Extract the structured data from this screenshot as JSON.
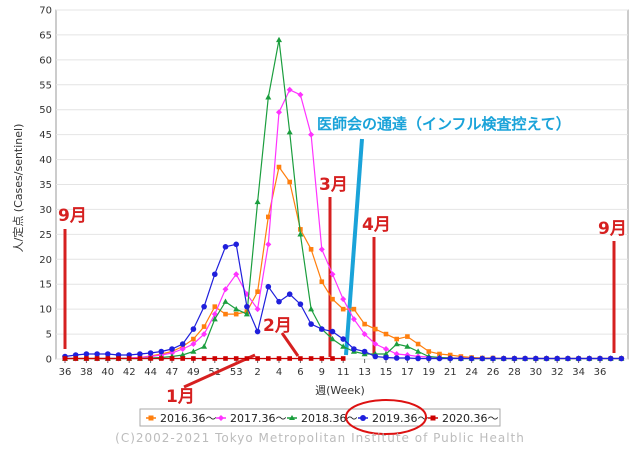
{
  "chart_data": {
    "type": "line",
    "ylabel": "人/定点 (Cases/sentinel)",
    "xlabel": "週(Week)",
    "ylim": [
      0,
      70
    ],
    "yticks": [
      0,
      5,
      10,
      15,
      20,
      25,
      30,
      35,
      40,
      45,
      50,
      55,
      60,
      65,
      70
    ],
    "xtick_labels": [
      "36",
      "38",
      "40",
      "42",
      "44",
      "47",
      "49",
      "51",
      "53",
      "2",
      "4",
      "6",
      "9",
      "11",
      "13",
      "15",
      "17",
      "19",
      "21",
      "24",
      "26",
      "28",
      "30",
      "32",
      "34",
      "36"
    ],
    "grid": "horizontal",
    "legend_position": "bottom",
    "series": [
      {
        "name": "2016.36～",
        "color": "#ff7f0e",
        "marker": "square",
        "values": [
          0.1,
          0.1,
          0.1,
          0.1,
          0.1,
          0.1,
          0.2,
          0.3,
          0.6,
          1.0,
          1.5,
          2.5,
          4.0,
          6.5,
          10.5,
          9.0,
          9.0,
          9.5,
          13.5,
          28.5,
          38.5,
          35.5,
          26.0,
          22.0,
          15.5,
          12.0,
          10.0,
          10.0,
          7.0,
          6.0,
          5.0,
          4.0,
          4.5,
          3.0,
          1.5,
          1.0,
          0.8,
          0.5,
          0.3,
          0.2,
          0.2,
          0.1,
          0.1,
          0.1,
          0.1,
          0.1,
          0.1,
          0.1,
          0.1,
          0.1,
          0.1,
          0.1,
          0.1
        ]
      },
      {
        "name": "2017.36～",
        "color": "#ff33ff",
        "marker": "diamond",
        "values": [
          0.1,
          0.1,
          0.1,
          0.1,
          0.1,
          0.1,
          0.2,
          0.3,
          0.5,
          0.8,
          1.2,
          2.0,
          3.0,
          5.0,
          9.0,
          14.0,
          17.0,
          13.0,
          10.0,
          23.0,
          49.5,
          54.0,
          53.0,
          45.0,
          22.0,
          17.0,
          12.0,
          8.0,
          5.0,
          3.0,
          2.0,
          1.0,
          0.8,
          0.5,
          0.4,
          0.3,
          0.2,
          0.2,
          0.1,
          0.1,
          0.1,
          0.1,
          0.1,
          0.1,
          0.1,
          0.1,
          0.1,
          0.1,
          0.1,
          0.1,
          0.1,
          0.1,
          0.1
        ]
      },
      {
        "name": "2018.36～",
        "color": "#1b9e3e",
        "marker": "triangle",
        "values": [
          0.1,
          0.1,
          0.1,
          0.1,
          0.1,
          0.1,
          0.1,
          0.1,
          0.2,
          0.3,
          0.5,
          0.8,
          1.5,
          2.5,
          8.0,
          11.5,
          10.0,
          9.0,
          31.5,
          52.5,
          64.0,
          45.5,
          25.0,
          10.0,
          6.0,
          4.0,
          2.5,
          1.5,
          1.0,
          1.0,
          1.0,
          3.0,
          2.5,
          1.5,
          0.5,
          0.3,
          0.2,
          0.1,
          0.1,
          0.1,
          0.1,
          0.1,
          0.1,
          0.1,
          0.1,
          0.1,
          0.1,
          0.1,
          0.1,
          0.1,
          0.1,
          0.1,
          0.1
        ]
      },
      {
        "name": "2019.36～",
        "color": "#1f1fdc",
        "marker": "circle",
        "values": [
          0.5,
          0.8,
          1.0,
          1.0,
          1.0,
          0.8,
          0.8,
          1.0,
          1.2,
          1.5,
          2.0,
          3.0,
          6.0,
          10.5,
          17.0,
          22.5,
          23.0,
          10.5,
          5.5,
          14.5,
          11.5,
          13.0,
          11.0,
          7.0,
          6.0,
          5.5,
          4.0,
          2.0,
          1.5,
          0.5,
          0.3,
          0.2,
          0.2,
          0.1,
          0.1,
          0.1,
          0.1,
          0.1,
          0.1,
          0.1,
          0.1,
          0.1,
          0.1,
          0.1,
          0.1,
          0.1,
          0.1,
          0.1,
          0.1,
          0.1,
          0.1,
          0.1,
          0.1
        ]
      },
      {
        "name": "2020.36～",
        "color": "#cc0000",
        "marker": "square",
        "values": [
          0.1,
          0.1,
          0.1,
          0.1,
          0.1,
          0.1,
          0.1,
          0.1,
          0.1,
          0.1,
          0.1,
          0.1,
          0.1,
          0.1,
          0.1,
          0.1,
          0.1,
          0.1,
          0.1,
          0.1,
          0.1,
          0.1,
          0.1,
          0.1,
          0.1,
          0.1,
          0.1
        ]
      }
    ],
    "annotations": [
      {
        "text": "9月"
      },
      {
        "text": "1月"
      },
      {
        "text": "2月"
      },
      {
        "text": "3月"
      },
      {
        "text": "4月"
      },
      {
        "text": "9月"
      },
      {
        "text": "医師会の通達（インフル検査控えて）"
      }
    ],
    "copyright": "(C)2002-2021 Tokyo Metropolitan Institute of Public Health"
  }
}
